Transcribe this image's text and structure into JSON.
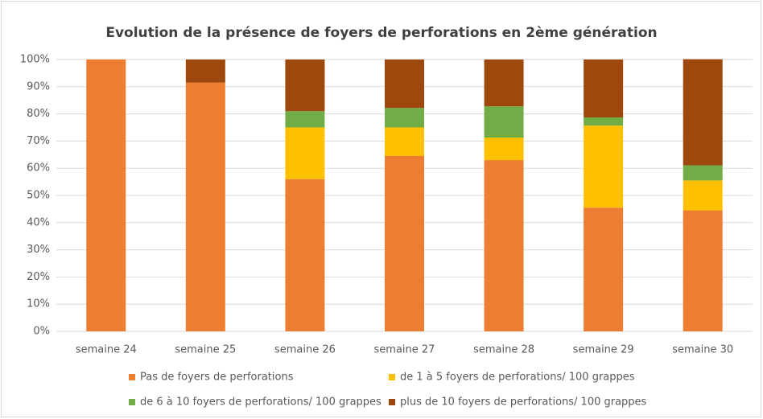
{
  "chart_data": {
    "type": "stacked_bar",
    "title": "Evolution de la présence de foyers de perforations en 2ème génération",
    "categories": [
      "semaine 24",
      "semaine 25",
      "semaine 26",
      "semaine 27",
      "semaine 28",
      "semaine 29",
      "semaine 30"
    ],
    "series": [
      {
        "name": "Pas de foyers de perforations",
        "color": "#ED7D31",
        "values": [
          100,
          91.5,
          56,
          64.5,
          63,
          45.5,
          44.5
        ]
      },
      {
        "name": "de 1 à 5 foyers de perforations/ 100 grappes",
        "color": "#FFC000",
        "values": [
          0,
          0,
          19,
          10.5,
          8.3,
          30.2,
          11
        ]
      },
      {
        "name": "de 6 à 10 foyers de perforations/ 100 grappes",
        "color": "#70AD47",
        "values": [
          0,
          0,
          6,
          7.2,
          11.5,
          3,
          5.6
        ]
      },
      {
        "name": "plus de 10 foyers de perforations/ 100 grappes",
        "color": "#9E480E",
        "values": [
          0,
          8.5,
          19,
          17.8,
          17.2,
          21.3,
          39
        ]
      }
    ],
    "ylim": [
      0,
      100
    ],
    "yticks": [
      {
        "value": 0,
        "label": "0%"
      },
      {
        "value": 10,
        "label": "10%"
      },
      {
        "value": 20,
        "label": "20%"
      },
      {
        "value": 30,
        "label": "30%"
      },
      {
        "value": 40,
        "label": "40%"
      },
      {
        "value": 50,
        "label": "50%"
      },
      {
        "value": 60,
        "label": "60%"
      },
      {
        "value": 70,
        "label": "70%"
      },
      {
        "value": 80,
        "label": "80%"
      },
      {
        "value": 90,
        "label": "90%"
      },
      {
        "value": 100,
        "label": "100%"
      }
    ],
    "grid": true
  }
}
